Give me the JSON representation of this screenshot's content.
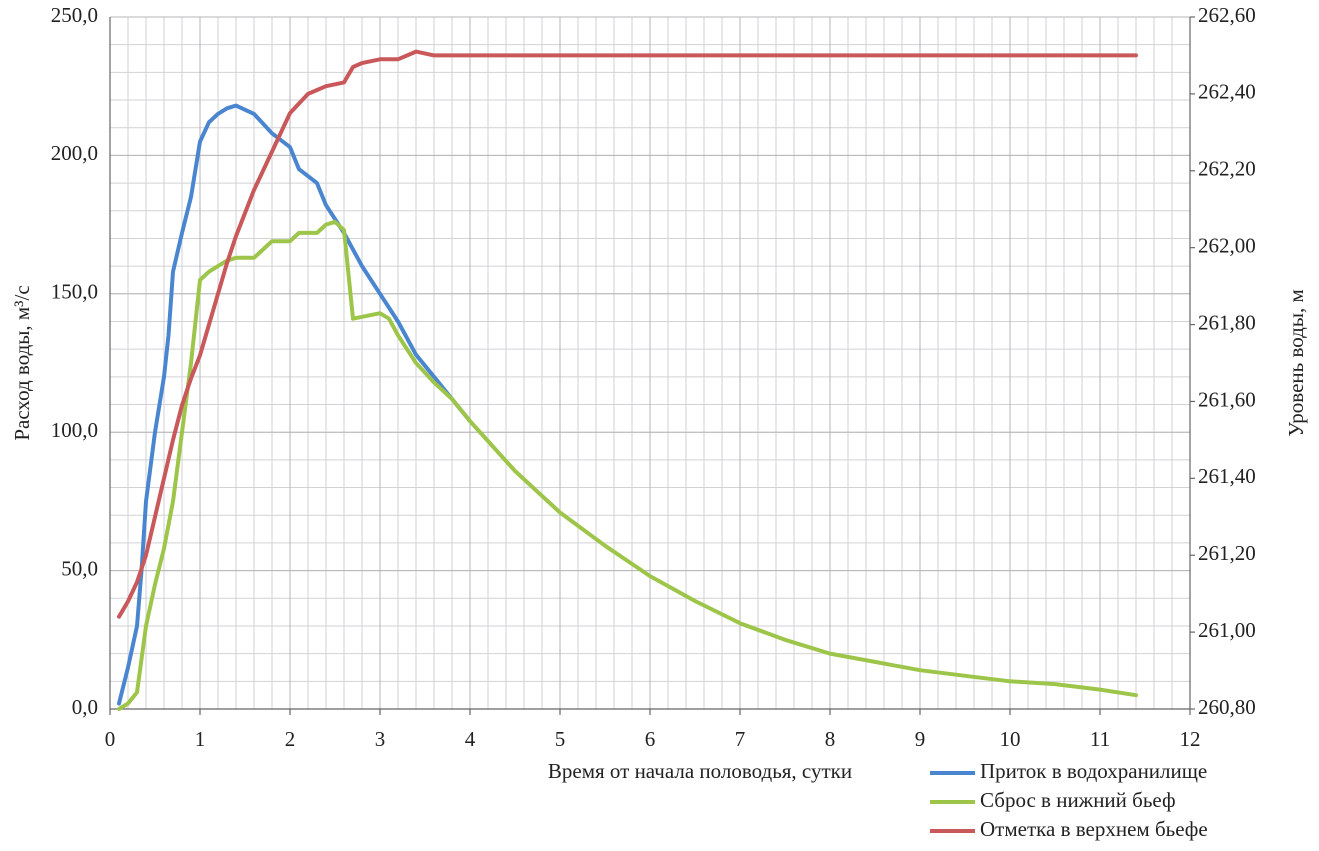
{
  "chart_data": {
    "type": "line",
    "xlabel": "Время от начала половодья, сутки",
    "ylabel": "Расход воды, м³/с",
    "y2label": "Уровень воды, м",
    "xlim": [
      0,
      12
    ],
    "xticks": [
      0,
      1,
      2,
      3,
      4,
      5,
      6,
      7,
      8,
      9,
      10,
      11,
      12
    ],
    "ylim": [
      0,
      250
    ],
    "yticks": [
      {
        "value": 0,
        "label": "0,0"
      },
      {
        "value": 50,
        "label": "50,0"
      },
      {
        "value": 100,
        "label": "100,0"
      },
      {
        "value": 150,
        "label": "150,0"
      },
      {
        "value": 200,
        "label": "200,0"
      },
      {
        "value": 250,
        "label": "250,0"
      }
    ],
    "y2lim": [
      260.8,
      262.6
    ],
    "y2ticks": [
      {
        "value": 260.8,
        "label": "260,80"
      },
      {
        "value": 261.0,
        "label": "261,00"
      },
      {
        "value": 261.2,
        "label": "261,20"
      },
      {
        "value": 261.4,
        "label": "261,40"
      },
      {
        "value": 261.6,
        "label": "261,60"
      },
      {
        "value": 261.8,
        "label": "261,80"
      },
      {
        "value": 262.0,
        "label": "262,00"
      },
      {
        "value": 262.2,
        "label": "262,20"
      },
      {
        "value": 262.4,
        "label": "262,40"
      },
      {
        "value": 262.6,
        "label": "262,60"
      }
    ],
    "grid": true,
    "minor_grid": {
      "x": 0.2,
      "y": 10
    },
    "legend": "lower right",
    "series": [
      {
        "name": "Приток в водохранилище",
        "color": "#4a86d0",
        "x": [
          0.1,
          0.2,
          0.3,
          0.35,
          0.4,
          0.5,
          0.6,
          0.65,
          0.7,
          0.8,
          0.9,
          1.0,
          1.1,
          1.2,
          1.3,
          1.4,
          1.6,
          1.8,
          2.0,
          2.1,
          2.3,
          2.4,
          2.6,
          2.8,
          3.0,
          3.2,
          3.4,
          3.6,
          3.8,
          4.0
        ],
        "values": [
          2,
          15,
          30,
          50,
          75,
          100,
          120,
          135,
          158,
          172,
          185,
          205,
          212,
          215,
          217,
          218,
          215,
          208,
          203,
          195,
          190,
          182,
          172,
          160,
          150,
          140,
          128,
          120,
          112,
          104
        ]
      },
      {
        "name": "Сброс в нижний бьеф",
        "color": "#9dc54a",
        "x": [
          0.1,
          0.2,
          0.3,
          0.4,
          0.5,
          0.6,
          0.7,
          0.8,
          0.9,
          1.0,
          1.1,
          1.2,
          1.3,
          1.4,
          1.6,
          1.8,
          2.0,
          2.1,
          2.3,
          2.4,
          2.5,
          2.6,
          2.7,
          3.0,
          3.1,
          3.2,
          3.4,
          3.6,
          3.8,
          4.0,
          4.5,
          5.0,
          5.5,
          6.0,
          6.5,
          7.0,
          7.5,
          8.0,
          8.5,
          9.0,
          9.5,
          10.0,
          10.5,
          11.0,
          11.4
        ],
        "values": [
          0,
          2,
          6,
          30,
          45,
          58,
          75,
          100,
          125,
          155,
          158,
          160,
          162,
          163,
          163,
          169,
          169,
          172,
          172,
          175,
          176,
          173,
          141,
          143,
          141,
          135,
          125,
          118,
          112,
          104,
          86,
          71,
          59,
          48,
          39,
          31,
          25,
          20,
          17,
          14,
          12,
          10,
          9,
          7,
          5
        ]
      },
      {
        "name": "Отметка в верхнем бьефе",
        "color": "#c8585a",
        "axis": "y2",
        "x": [
          0.1,
          0.2,
          0.3,
          0.4,
          0.5,
          0.6,
          0.7,
          0.8,
          0.9,
          1.0,
          1.1,
          1.2,
          1.3,
          1.4,
          1.6,
          1.8,
          2.0,
          2.2,
          2.4,
          2.6,
          2.7,
          2.8,
          3.0,
          3.2,
          3.4,
          3.6,
          4.0,
          11.4
        ],
        "values": [
          261.04,
          261.08,
          261.13,
          261.2,
          261.3,
          261.4,
          261.5,
          261.59,
          261.66,
          261.72,
          261.8,
          261.88,
          261.96,
          262.03,
          262.15,
          262.25,
          262.35,
          262.4,
          262.42,
          262.43,
          262.47,
          262.48,
          262.49,
          262.49,
          262.51,
          262.5,
          262.5,
          262.5
        ]
      }
    ]
  }
}
